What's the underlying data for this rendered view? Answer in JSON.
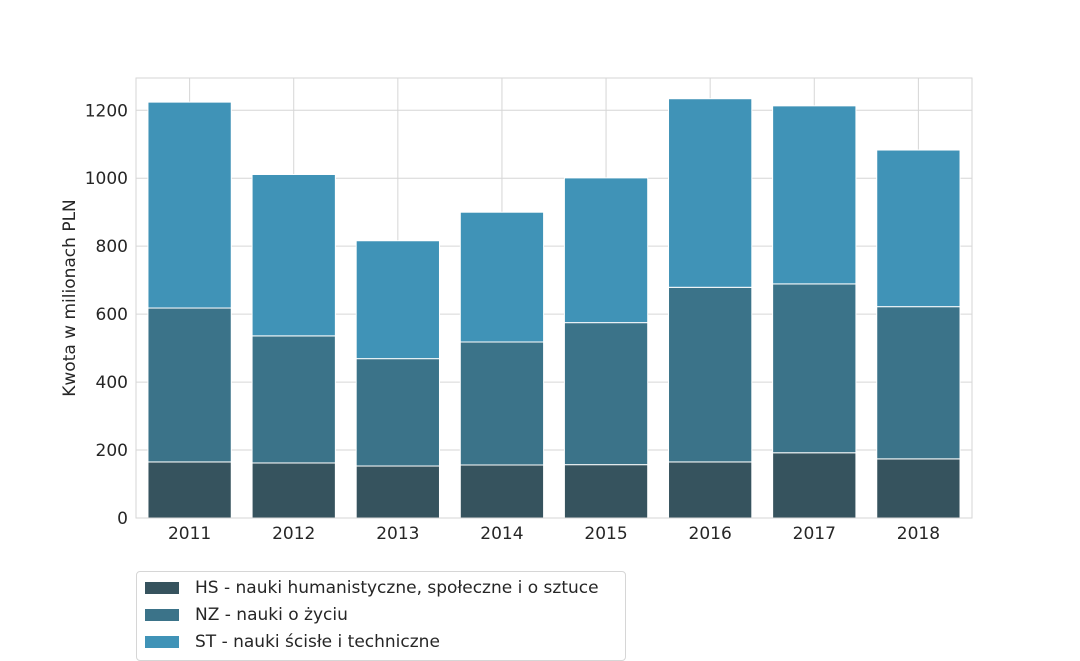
{
  "chart_data": {
    "type": "bar",
    "stacked": true,
    "categories": [
      "2011",
      "2012",
      "2013",
      "2014",
      "2015",
      "2016",
      "2017",
      "2018"
    ],
    "series": [
      {
        "name": "HS - nauki humanistyczne, społeczne i o sztuce",
        "color": "#36535e",
        "values": [
          165,
          162,
          153,
          156,
          157,
          165,
          192,
          174
        ]
      },
      {
        "name": "NZ - nauki o życiu",
        "color": "#3b7389",
        "values": [
          453,
          374,
          316,
          362,
          418,
          514,
          497,
          448
        ]
      },
      {
        "name": "ST - nauki ścisłe i techniczne",
        "color": "#4093b7",
        "values": [
          606,
          475,
          347,
          382,
          426,
          555,
          524,
          461
        ]
      }
    ],
    "title": "",
    "xlabel": "",
    "ylabel": "Kwota w milionach PLN",
    "ylim": [
      0,
      1295
    ],
    "yticks": [
      0,
      200,
      400,
      600,
      800,
      1000,
      1200
    ],
    "grid": true,
    "legend_position": "bottom-left"
  }
}
